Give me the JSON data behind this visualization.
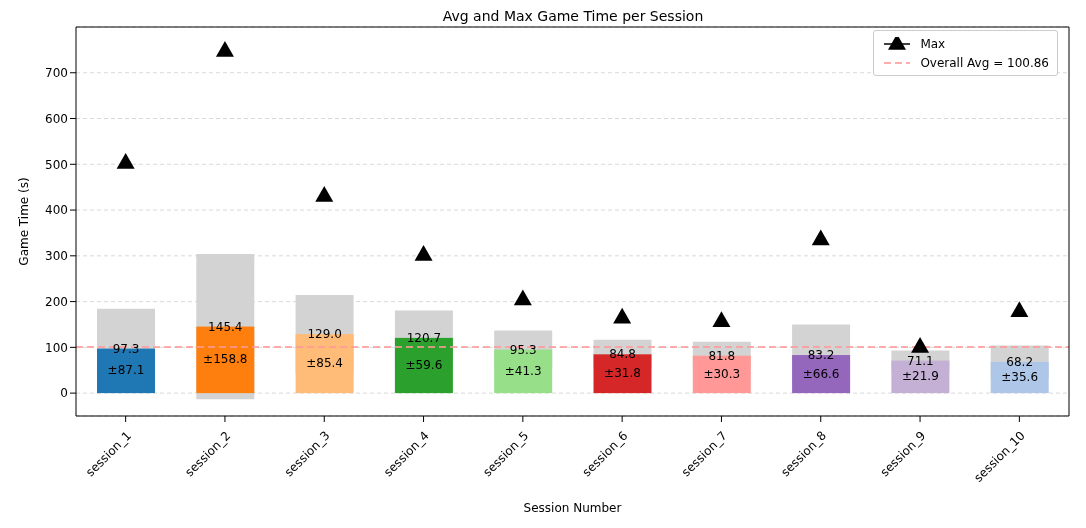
{
  "chart_data": {
    "type": "bar",
    "title": "Avg and Max Game Time per Session",
    "xlabel": "Session Number",
    "ylabel": "Game Time (s)",
    "categories": [
      "session_1",
      "session_2",
      "session_3",
      "session_4",
      "session_5",
      "session_6",
      "session_7",
      "session_8",
      "session_9",
      "session_10"
    ],
    "series": [
      {
        "type": "bar",
        "colors": [
          "#1f77b4",
          "#ff7f0e",
          "#ffbb78",
          "#2ca02c",
          "#98df8a",
          "#d62728",
          "#ff9896",
          "#9467bd",
          "#c5b0d5",
          "#aec7e8"
        ],
        "values": [
          97.3,
          145.4,
          129.0,
          120.7,
          95.3,
          84.8,
          81.8,
          83.2,
          71.1,
          68.2
        ],
        "value_labels": [
          "97.3",
          "145.4",
          "129.0",
          "120.7",
          "95.3",
          "84.8",
          "81.8",
          "83.2",
          "71.1",
          "68.2"
        ],
        "errors": [
          87.1,
          158.8,
          85.4,
          59.6,
          41.3,
          31.8,
          30.3,
          66.6,
          21.9,
          35.6
        ]
      },
      {
        "type": "scatter",
        "name": "Max",
        "color": "#000000",
        "marker": "triangle",
        "x": [
          "session_1",
          "session_2",
          "session_3",
          "session_4",
          "session_5",
          "session_6",
          "session_7",
          "session_8",
          "session_9",
          "session_10"
        ],
        "values": [
          505,
          750,
          433,
          304,
          207,
          167,
          159,
          338,
          103,
          181
        ]
      }
    ],
    "annotations": [
      {
        "text": "±87.1",
        "x": "session_1",
        "y": 97.3
      },
      {
        "text": "±158.8",
        "x": "session_2",
        "y": 145.4
      },
      {
        "text": "±85.4",
        "x": "session_3",
        "y": 129.0
      },
      {
        "text": "±59.6",
        "x": "session_4",
        "y": 120.7
      },
      {
        "text": "±41.3",
        "x": "session_5",
        "y": 95.3
      },
      {
        "text": "±31.8",
        "x": "session_6",
        "y": 84.8
      },
      {
        "text": "±30.3",
        "x": "session_7",
        "y": 81.8
      },
      {
        "text": "±66.6",
        "x": "session_8",
        "y": 83.2
      },
      {
        "text": "±21.9",
        "x": "session_9",
        "y": 71.1
      },
      {
        "text": "±35.6",
        "x": "session_10",
        "y": 68.2
      }
    ],
    "ref_lines": [
      {
        "axis": "y",
        "value": 100.86,
        "label": "Overall Avg = 100.86",
        "color": "#ff9999",
        "line_style": "dashed"
      }
    ],
    "ylim": [
      -50,
      800
    ],
    "yticks": [
      0,
      100,
      200,
      300,
      400,
      500,
      600,
      700
    ],
    "grid": "y",
    "legend": "top right"
  }
}
